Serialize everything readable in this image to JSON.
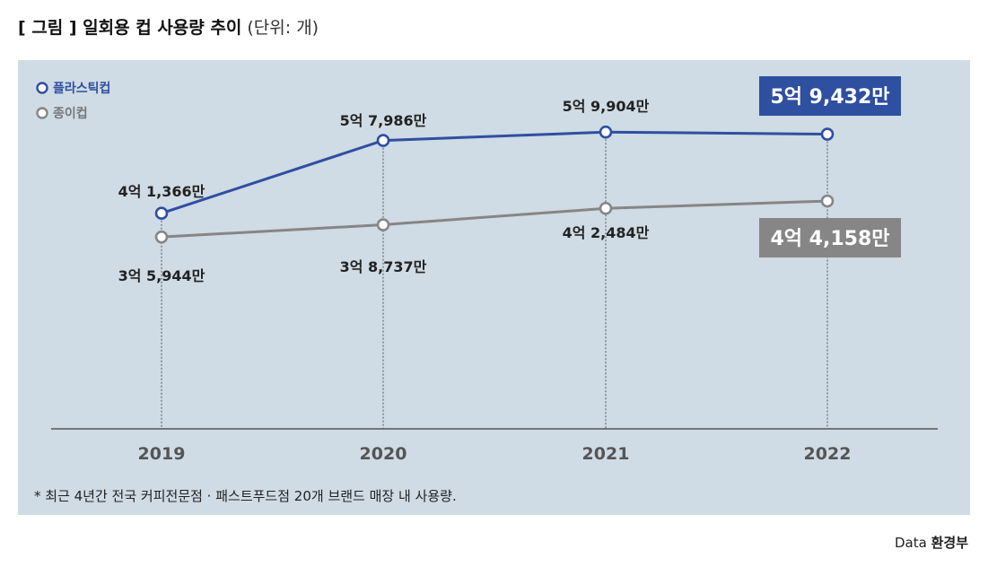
{
  "title": {
    "bold": "[ 그림 ] 일회용 컵 사용량 추이",
    "unit": "(단위: 개)"
  },
  "colors": {
    "plastic": "#2f4fa0",
    "paper": "#868686",
    "panel_bg": "#cfdbe5",
    "axis": "#555555"
  },
  "chart_data": {
    "type": "line",
    "categories": [
      "2019",
      "2020",
      "2021",
      "2022"
    ],
    "series": [
      {
        "name": "플라스틱컵",
        "values": [
          413660000,
          579860000,
          599040000,
          594320000
        ],
        "labels": [
          "4억 1,366만",
          "5억 7,986만",
          "5억 9,904만",
          "5억 9,432만"
        ]
      },
      {
        "name": "종이컵",
        "values": [
          359440000,
          387370000,
          424840000,
          441580000
        ],
        "labels": [
          "3억 5,944만",
          "3억 8,737만",
          "4억 2,484만",
          "4억 4,158만"
        ]
      }
    ],
    "legend_position": "top-left",
    "grid": "vertical-dotted"
  },
  "footnote": "* 최근 4년간 전국 커피전문점 · 패스트푸드점 20개 브랜드 매장 내 사용량.",
  "source": {
    "prefix": "Data",
    "name": "환경부"
  }
}
